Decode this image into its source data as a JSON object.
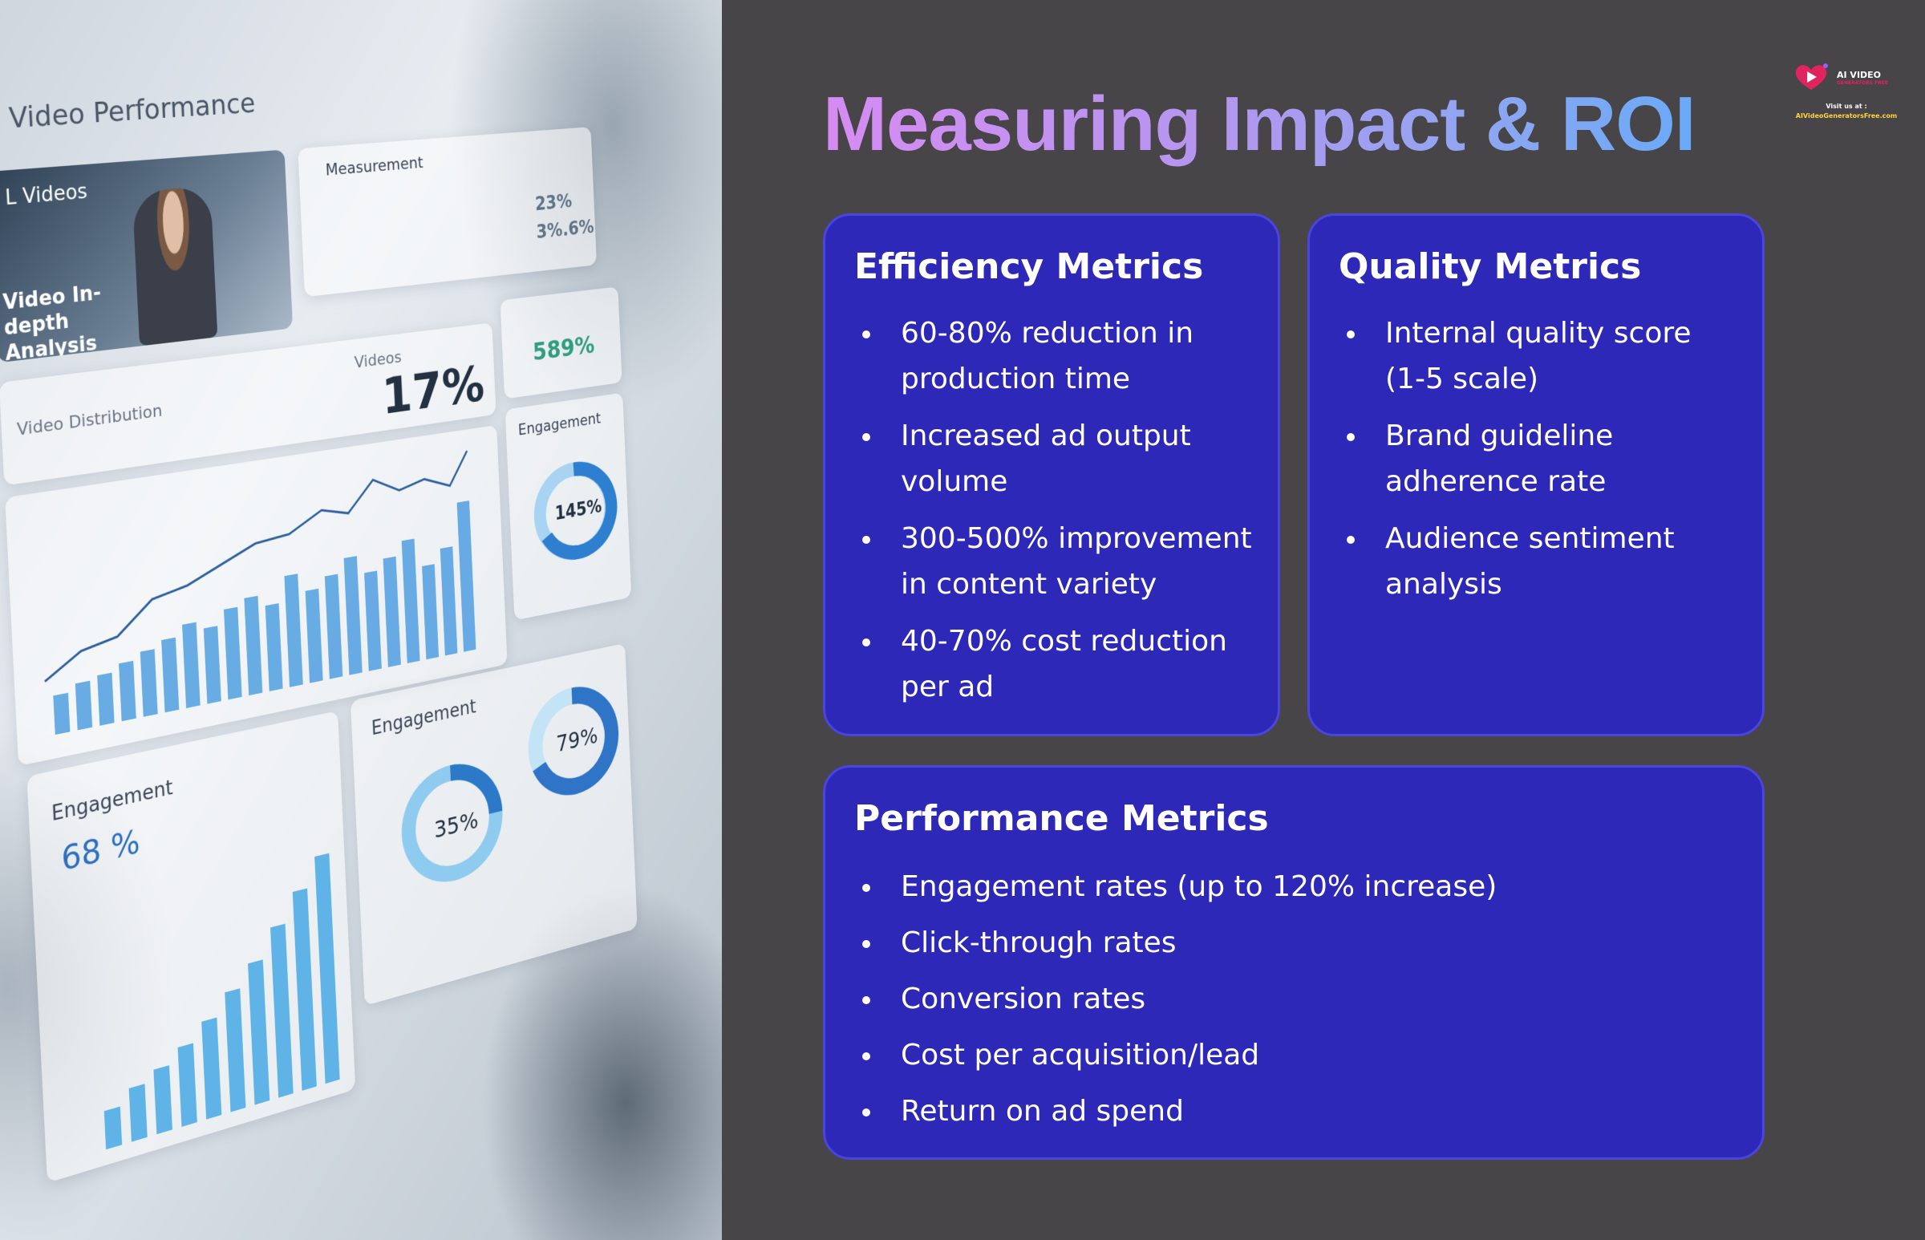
{
  "title": "Measuring Impact & ROI",
  "logo": {
    "name_line1": "AI VIDEO",
    "name_line2": "GENERATORS FREE",
    "visit": "Visit us at :",
    "url": "AIVideoGeneratorsFree.com"
  },
  "panels": {
    "efficiency": {
      "heading": "Efficiency Metrics",
      "items": [
        "60-80% reduction in production time",
        "Increased ad output volume",
        "300-500% improvement in content variety",
        "40-70% cost reduction per ad"
      ]
    },
    "quality": {
      "heading": "Quality Metrics",
      "items": [
        "Internal quality score (1-5 scale)",
        "Brand guideline adherence rate",
        "Audience sentiment analysis"
      ]
    },
    "performance": {
      "heading": "Performance Metrics",
      "items": [
        "Engagement rates (up to 120% increase)",
        "Click-through rates",
        "Conversion rates",
        "Cost per acquisition/lead",
        "Return on ad spend"
      ]
    }
  },
  "photo": {
    "dashboard_title": "Video Performance",
    "videos_label": "L Videos",
    "measurement_label": "Measurement",
    "thumb_text": "Video In-depth Analysis",
    "stat_videos_label": "Videos",
    "stat_videos_value": "17%",
    "stat_top_value": "589%",
    "stat_small_a": "23%",
    "stat_small_b": "3%.6%",
    "distribution_label": "Video Distribution",
    "engagement_label": "Engagement",
    "donut_right_value": "145%",
    "engagement_section_label": "Engagement",
    "engagement_pct": "68 %",
    "engagement_panel_label": "Engagement",
    "donut_mid_value": "35%",
    "donut_big_value": "79%"
  },
  "colors": {
    "background": "#474547",
    "panel": "#2d28b8",
    "panel_border": "#4a45dc",
    "title_gradient_start": "#d68cf2",
    "title_gradient_end": "#69aaf6",
    "logo_accent": "#e0245e"
  }
}
